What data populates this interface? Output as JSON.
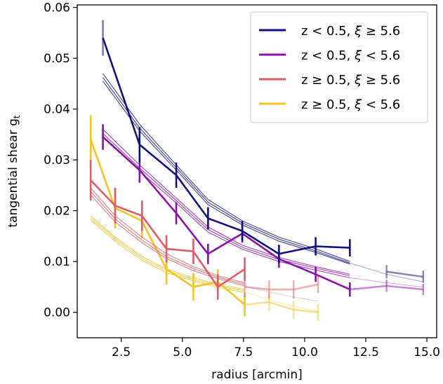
{
  "chart_data": {
    "type": "line",
    "xlabel": "radius [arcmin]",
    "ylabel": "tangential shear g",
    "ylabel_subscript": "t",
    "xlim": [
      0.7,
      15.4
    ],
    "ylim": [
      -0.005,
      0.0605
    ],
    "xticks": [
      2.5,
      5.0,
      7.5,
      10.0,
      12.5,
      15.0
    ],
    "xtick_labels": [
      "2.5",
      "5.0",
      "7.5",
      "10.0",
      "12.5",
      "15.0"
    ],
    "yticks": [
      0.0,
      0.01,
      0.02,
      0.03,
      0.04,
      0.05,
      0.06
    ],
    "ytick_labels": [
      "0.00",
      "0.01",
      "0.02",
      "0.03",
      "0.04",
      "0.05",
      "0.06"
    ],
    "legend_position": "top-right",
    "grid": false,
    "series": [
      {
        "key": "s1",
        "name": "z < 0.5, ξ ≥ 5.6",
        "legend": {
          "pre": "z < 0.5, ",
          "xi": "ξ",
          "post": " ≥ 5.6"
        },
        "color": "#12127f",
        "measured": {
          "x": [
            1.75,
            3.25,
            4.75,
            6.05,
            7.45,
            8.95,
            10.45,
            11.85
          ],
          "y": [
            0.054,
            0.033,
            0.027,
            0.0185,
            0.016,
            0.0115,
            0.013,
            0.0127
          ],
          "err": [
            0.0035,
            0.0035,
            0.0025,
            0.0022,
            0.002,
            0.0018,
            0.0018,
            0.0017
          ]
        },
        "faded": {
          "x": [
            13.35,
            14.85
          ],
          "y": [
            0.008,
            0.007
          ],
          "err": [
            0.0013,
            0.0012
          ]
        },
        "model_x": [
          1.75,
          3.25,
          4.75,
          6.05,
          7.45,
          8.95,
          10.45,
          11.85
        ],
        "models": [
          [
            0.047,
            0.037,
            0.029,
            0.0222,
            0.018,
            0.0148,
            0.0125,
            0.01
          ],
          [
            0.0462,
            0.0363,
            0.0285,
            0.0217,
            0.0176,
            0.0144,
            0.0121,
            0.0097
          ],
          [
            0.0455,
            0.0357,
            0.028,
            0.0212,
            0.0172,
            0.014,
            0.0118,
            0.0095
          ]
        ],
        "model_ext_x": [
          11.85,
          13.35,
          14.85
        ],
        "model_ext_y": [
          0.0097,
          0.0075,
          0.006
        ]
      },
      {
        "key": "s2",
        "name": "z < 0.5, ξ < 5.6",
        "legend": {
          "pre": "z < 0.5, ",
          "xi": "ξ",
          "post": " < 5.6"
        },
        "color": "#8b12a8",
        "measured": {
          "x": [
            1.75,
            3.25,
            4.75,
            6.05,
            7.45,
            8.95,
            10.45,
            11.85
          ],
          "y": [
            0.0345,
            0.028,
            0.0195,
            0.0115,
            0.0155,
            0.0105,
            0.0075,
            0.0045
          ],
          "err": [
            0.0025,
            0.0025,
            0.0022,
            0.002,
            0.0018,
            0.0017,
            0.0015,
            0.0014
          ]
        },
        "faded": {
          "x": [
            11.85,
            13.35,
            14.85
          ],
          "y": [
            0.0045,
            0.0052,
            0.0045
          ],
          "err": [
            0.0014,
            0.0012,
            0.0011
          ]
        },
        "model_x": [
          1.75,
          3.25,
          4.75,
          6.05,
          7.45,
          8.95,
          10.45,
          11.85
        ],
        "models": [
          [
            0.036,
            0.029,
            0.0225,
            0.0168,
            0.0132,
            0.0108,
            0.009,
            0.0075
          ],
          [
            0.0352,
            0.0284,
            0.022,
            0.0163,
            0.0128,
            0.0104,
            0.0087,
            0.0072
          ],
          [
            0.0345,
            0.0278,
            0.0215,
            0.0158,
            0.0124,
            0.01,
            0.0083,
            0.0068
          ]
        ],
        "model_ext_x": [
          11.85,
          13.35,
          14.85
        ],
        "model_ext_y": [
          0.0068,
          0.0058,
          0.005
        ]
      },
      {
        "key": "s3",
        "name": "z ≥ 0.5, ξ ≥ 5.6",
        "legend": {
          "pre": "z ≥ 0.5, ",
          "xi": "ξ",
          "post": " ≥ 5.6"
        },
        "color": "#dd5e66",
        "measured": {
          "x": [
            1.25,
            2.25,
            3.35,
            4.35,
            5.45,
            6.45,
            7.55
          ],
          "y": [
            0.026,
            0.021,
            0.019,
            0.0125,
            0.012,
            0.005,
            0.0085
          ],
          "err": [
            0.004,
            0.0035,
            0.003,
            0.0027,
            0.0025,
            0.0025,
            0.0023
          ]
        },
        "faded": {
          "x": [
            7.55,
            8.55,
            9.55,
            10.55
          ],
          "y": [
            0.005,
            0.0045,
            0.0045,
            0.0055
          ],
          "err": [
            0.002,
            0.0018,
            0.0018,
            0.0017
          ]
        },
        "model_x": [
          1.25,
          2.25,
          3.35,
          4.35,
          5.45,
          6.45,
          7.55
        ],
        "models": [
          [
            0.0245,
            0.019,
            0.0148,
            0.0115,
            0.009,
            0.0072,
            0.0058
          ],
          [
            0.0238,
            0.0184,
            0.0142,
            0.011,
            0.0086,
            0.0069,
            0.0055
          ],
          [
            0.0231,
            0.0178,
            0.0137,
            0.0106,
            0.0082,
            0.0066,
            0.0052
          ]
        ],
        "model_ext_x": [
          7.55,
          8.55,
          9.55,
          10.55
        ],
        "model_ext_y": [
          0.0052,
          0.004,
          0.003,
          0.0022
        ]
      },
      {
        "key": "s4",
        "name": "z ≥ 0.5, ξ < 5.6",
        "legend": {
          "pre": "z ≥ 0.5, ",
          "xi": "ξ",
          "post": " < 5.6"
        },
        "color": "#f5c526",
        "measured": {
          "x": [
            1.25,
            2.25,
            3.35,
            4.35,
            5.45,
            6.45,
            7.55
          ],
          "y": [
            0.034,
            0.0205,
            0.018,
            0.0085,
            0.005,
            0.006,
            0.0015
          ],
          "err": [
            0.0048,
            0.004,
            0.0035,
            0.003,
            0.0027,
            0.0025,
            0.0023
          ]
        },
        "faded": {
          "x": [
            7.55,
            8.55,
            9.55,
            10.55
          ],
          "y": [
            0.0015,
            0.002,
            0.0005,
            0.0
          ],
          "err": [
            0.002,
            0.0018,
            0.0018,
            0.0017
          ]
        },
        "model_x": [
          1.25,
          2.25,
          3.35,
          4.35,
          5.45,
          6.45,
          7.55
        ],
        "models": [
          [
            0.019,
            0.0148,
            0.011,
            0.0085,
            0.0068,
            0.0055,
            0.0045
          ],
          [
            0.0186,
            0.0144,
            0.0106,
            0.0082,
            0.0065,
            0.0052,
            0.0042
          ],
          [
            0.0182,
            0.014,
            0.0102,
            0.0078,
            0.0062,
            0.0049,
            0.0039
          ]
        ],
        "model_ext_x": [
          7.55,
          8.55,
          9.55,
          10.55
        ],
        "model_ext_y": [
          0.004,
          0.0025,
          0.0012,
          0.0002
        ]
      }
    ]
  }
}
